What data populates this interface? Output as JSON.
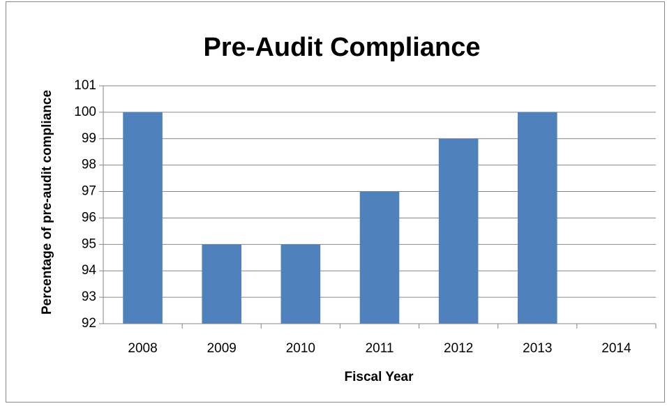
{
  "chart_data": {
    "type": "bar",
    "title": "Pre-Audit Compliance",
    "x_label": "Fiscal Year",
    "y_label": "Percentage of pre-audit compliance",
    "categories": [
      "2008",
      "2009",
      "2010",
      "2011",
      "2012",
      "2013",
      "2014"
    ],
    "values": [
      100,
      95,
      95,
      97,
      99,
      100,
      null
    ],
    "color": "#4f81bd",
    "ylim": [
      92,
      101
    ],
    "yticks": [
      92,
      93,
      94,
      95,
      96,
      97,
      98,
      99,
      100,
      101
    ],
    "grid": true
  }
}
